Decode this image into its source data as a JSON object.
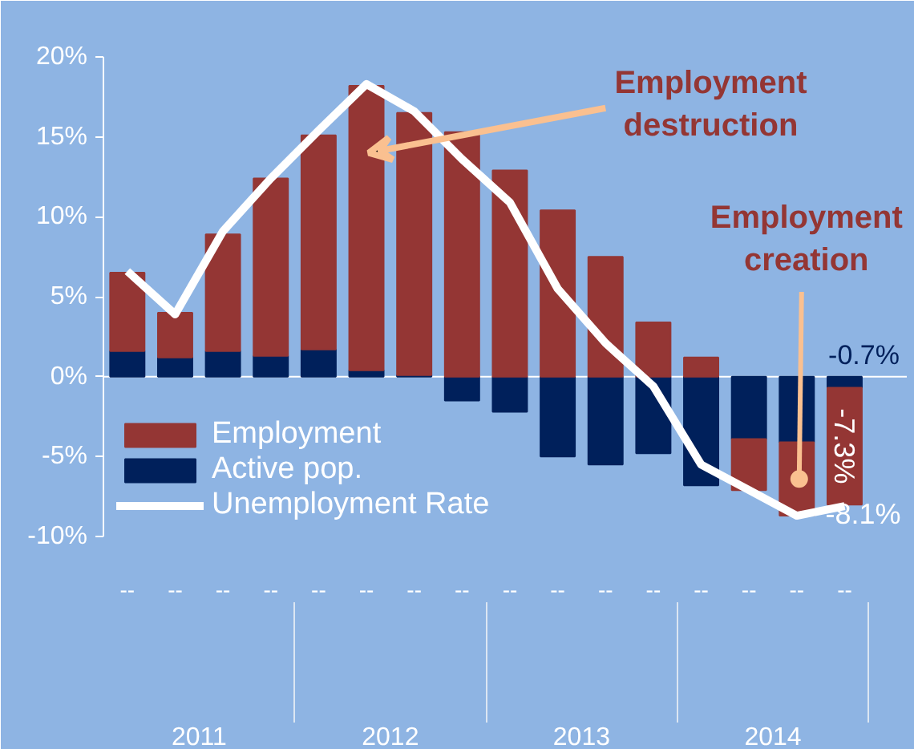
{
  "chart_data": {
    "type": "bar",
    "stacked": true,
    "categories": [
      "--",
      "--",
      "--",
      "--",
      "--",
      "--",
      "--",
      "--",
      "--",
      "--",
      "--",
      "--",
      "--",
      "--",
      "--",
      "--"
    ],
    "series": [
      {
        "name": "Active pop.",
        "color": "#00205b",
        "values": [
          1.6,
          1.2,
          1.6,
          1.3,
          1.7,
          0.4,
          0.1,
          -1.5,
          -2.2,
          -5.0,
          -5.5,
          -4.8,
          -6.8,
          -3.9,
          -4.1,
          -0.7
        ],
        "value_labels": [
          null,
          null,
          null,
          null,
          null,
          null,
          null,
          null,
          null,
          null,
          null,
          null,
          null,
          null,
          null,
          "-0.7%"
        ]
      },
      {
        "name": "Employment",
        "color": "#943634",
        "values": [
          4.9,
          2.8,
          7.3,
          11.1,
          13.4,
          17.8,
          16.4,
          15.3,
          12.9,
          10.4,
          7.5,
          3.4,
          1.2,
          -3.2,
          -4.6,
          -7.3
        ],
        "value_labels": [
          null,
          null,
          null,
          null,
          null,
          null,
          null,
          null,
          null,
          null,
          null,
          null,
          null,
          null,
          null,
          "-7.3%"
        ]
      },
      {
        "name": "Unemployment Rate",
        "type": "line",
        "color": "#ffffff",
        "values": [
          6.6,
          3.9,
          9.1,
          12.4,
          15.4,
          18.3,
          16.6,
          13.6,
          10.9,
          5.5,
          2.1,
          -0.6,
          -5.5,
          -7.1,
          -8.7,
          -8.1
        ],
        "value_labels": [
          null,
          null,
          null,
          null,
          null,
          null,
          null,
          null,
          null,
          null,
          null,
          null,
          null,
          null,
          null,
          "-8.1%"
        ]
      }
    ],
    "ylim": [
      -10,
      20
    ],
    "yticks": [
      {
        "value": -10,
        "label": "-10%"
      },
      {
        "value": -5,
        "label": "-5%"
      },
      {
        "value": 0,
        "label": "0%"
      },
      {
        "value": 5,
        "label": "5%"
      },
      {
        "value": 10,
        "label": "10%"
      },
      {
        "value": 15,
        "label": "15%"
      },
      {
        "value": 20,
        "label": "20%"
      }
    ],
    "annotations": [
      "Employment destruction",
      "Employment creation",
      "2011",
      "2012",
      "2013",
      "2014"
    ],
    "ref_lines": [
      {
        "axis": "y",
        "value": 0,
        "color": "#ffffff"
      }
    ],
    "legend": "bottom left"
  }
}
